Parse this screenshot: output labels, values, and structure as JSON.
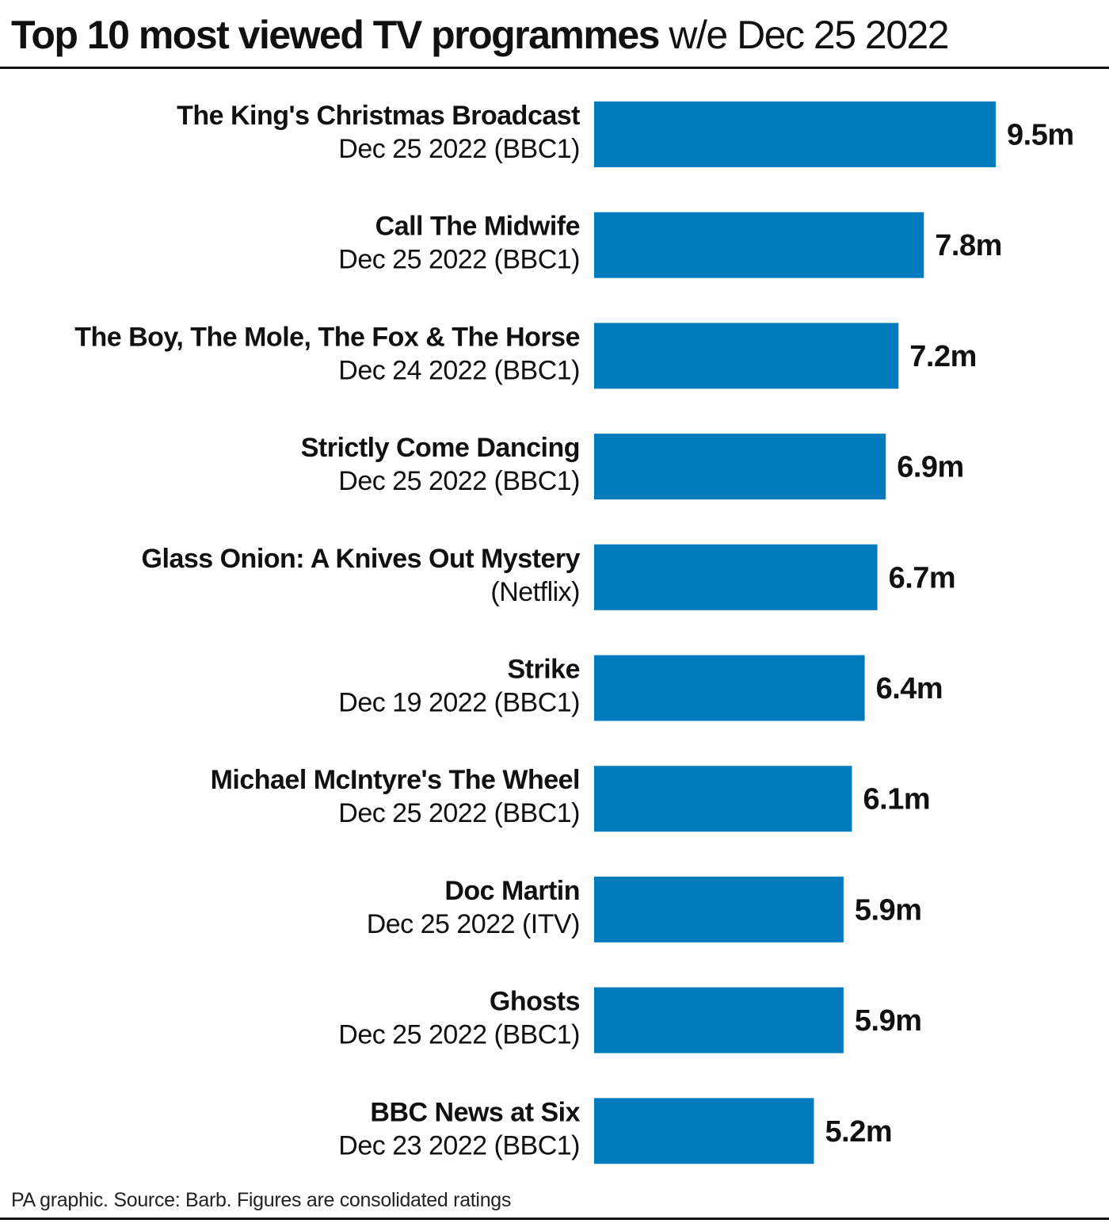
{
  "header": {
    "title_main": "Top 10 most viewed TV programmes",
    "title_sub": "w/e Dec 25 2022"
  },
  "footer": {
    "source": "PA graphic. Source: Barb. Figures are consolidated ratings"
  },
  "colors": {
    "bar": "#007CBE",
    "text": "#111111"
  },
  "chart_data": {
    "type": "bar",
    "orientation": "horizontal",
    "title": "Top 10 most viewed TV programmes w/e Dec 25 2022",
    "xlabel": "",
    "ylabel": "",
    "xlim": [
      0,
      9.5
    ],
    "grid": false,
    "legend": "none",
    "unit": "m",
    "categories": [
      {
        "name": "The King's Christmas Broadcast",
        "sub": "Dec 25 2022 (BBC1)"
      },
      {
        "name": "Call The Midwife",
        "sub": "Dec 25 2022 (BBC1)"
      },
      {
        "name": "The Boy, The Mole, The Fox & The Horse",
        "sub": "Dec 24 2022 (BBC1)"
      },
      {
        "name": "Strictly Come Dancing",
        "sub": "Dec 25 2022 (BBC1)"
      },
      {
        "name": "Glass Onion: A Knives Out Mystery",
        "sub": "(Netflix)"
      },
      {
        "name": "Strike",
        "sub": "Dec 19 2022 (BBC1)"
      },
      {
        "name": "Michael McIntyre's The Wheel",
        "sub": "Dec 25 2022 (BBC1)"
      },
      {
        "name": "Doc Martin",
        "sub": "Dec 25 2022 (ITV)"
      },
      {
        "name": "Ghosts",
        "sub": "Dec 25 2022 (BBC1)"
      },
      {
        "name": "BBC News at Six",
        "sub": "Dec 23 2022 (BBC1)"
      }
    ],
    "values": [
      9.5,
      7.8,
      7.2,
      6.9,
      6.7,
      6.4,
      6.1,
      5.9,
      5.9,
      5.2
    ],
    "value_labels": [
      "9.5m",
      "7.8m",
      "7.2m",
      "6.9m",
      "6.7m",
      "6.4m",
      "6.1m",
      "5.9m",
      "5.9m",
      "5.2m"
    ]
  }
}
